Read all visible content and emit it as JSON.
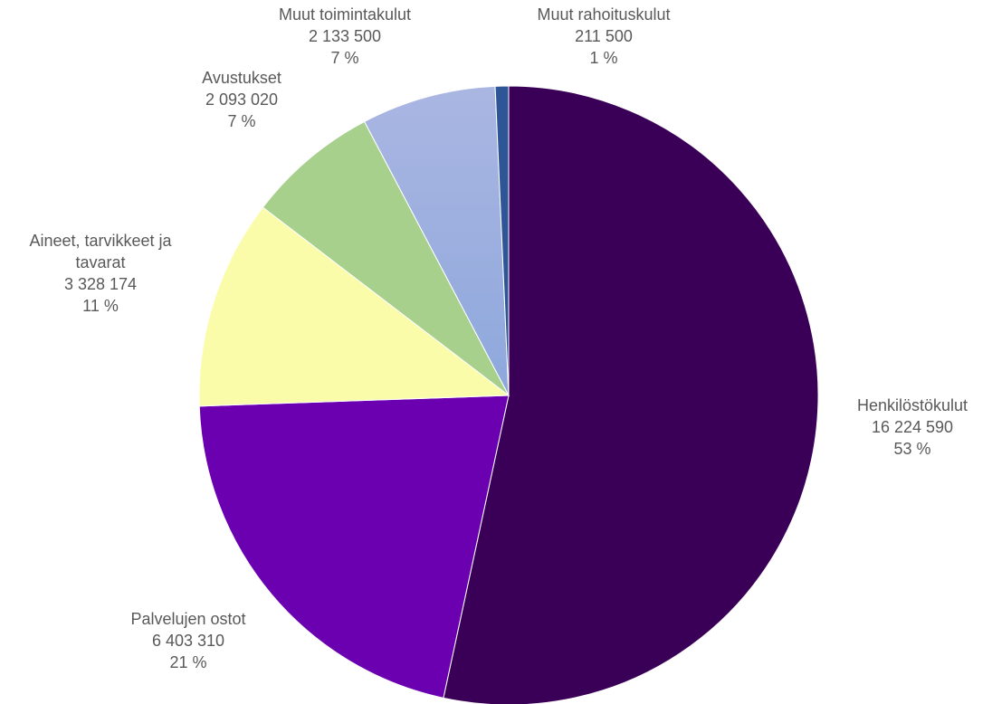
{
  "chart_data": {
    "type": "pie",
    "slices": [
      {
        "label_lines": [
          "Henkilöstökulut"
        ],
        "value": 16224590,
        "value_label": "16 224 590",
        "percent_label": "53 %",
        "color": "#3a0057",
        "gradient_to": null
      },
      {
        "label_lines": [
          "Palvelujen ostot"
        ],
        "value": 6403310,
        "value_label": "6 403 310",
        "percent_label": "21 %",
        "color": "#6a00b0",
        "gradient_to": null
      },
      {
        "label_lines": [
          "Aineet, tarvikkeet ja",
          "tavarat"
        ],
        "value": 3328174,
        "value_label": "3 328 174",
        "percent_label": "11 %",
        "color": "#fafcaa",
        "gradient_to": null
      },
      {
        "label_lines": [
          "Avustukset"
        ],
        "value": 2093020,
        "value_label": "2 093 020",
        "percent_label": "7 %",
        "color": "#a8d08d",
        "gradient_to": null
      },
      {
        "label_lines": [
          "Muut toimintakulut"
        ],
        "value": 2133500,
        "value_label": "2 133 500",
        "percent_label": "7 %",
        "color": "#aab6e2",
        "gradient_to": "#8ea8dc"
      },
      {
        "label_lines": [
          "Muut rahoituskulut"
        ],
        "value": 211500,
        "value_label": "211 500",
        "percent_label": "1 %",
        "color": "#2e5596",
        "gradient_to": null
      }
    ],
    "start_angle_deg": 0,
    "direction": "clockwise",
    "legend": "none"
  }
}
